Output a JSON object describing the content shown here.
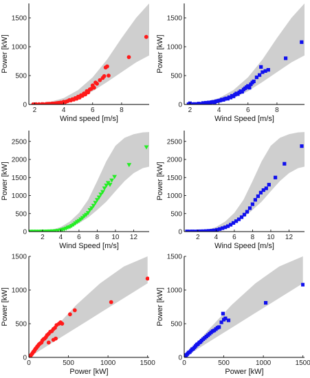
{
  "colors": {
    "band": "#cfcfcf",
    "red": "#ff1a1a",
    "blue": "#1010ee",
    "green": "#22ee22",
    "axis": "#000000"
  },
  "chart_data": [
    {
      "id": "p1",
      "type": "scatter",
      "marker": "circle",
      "color": "#ff1a1a",
      "xlabel": "Wind speed [m/s]",
      "ylabel": "Power [kW]",
      "xlim": [
        1.6,
        9.9
      ],
      "ylim": [
        0,
        1750
      ],
      "xticks": [
        2,
        4,
        6,
        8
      ],
      "yticks": [
        0,
        500,
        1000,
        1500
      ],
      "band": {
        "x": [
          1.8,
          3,
          4,
          5,
          6,
          7,
          8,
          9,
          9.9
        ],
        "lower": [
          0,
          10,
          40,
          110,
          230,
          390,
          560,
          730,
          850
        ],
        "upper": [
          0,
          40,
          110,
          250,
          470,
          780,
          1150,
          1500,
          1750
        ]
      },
      "points": [
        [
          1.9,
          2
        ],
        [
          2.1,
          3
        ],
        [
          2.3,
          4
        ],
        [
          2.5,
          6
        ],
        [
          2.6,
          5
        ],
        [
          2.8,
          8
        ],
        [
          2.9,
          10
        ],
        [
          3.0,
          12
        ],
        [
          3.1,
          9
        ],
        [
          3.2,
          16
        ],
        [
          3.3,
          14
        ],
        [
          3.4,
          18
        ],
        [
          3.5,
          22
        ],
        [
          3.6,
          25
        ],
        [
          3.7,
          28
        ],
        [
          3.8,
          32
        ],
        [
          3.9,
          30
        ],
        [
          4.0,
          45
        ],
        [
          4.1,
          40
        ],
        [
          4.2,
          52
        ],
        [
          4.3,
          60
        ],
        [
          4.4,
          75
        ],
        [
          4.5,
          70
        ],
        [
          4.6,
          90
        ],
        [
          4.7,
          85
        ],
        [
          4.8,
          110
        ],
        [
          4.9,
          100
        ],
        [
          5.0,
          135
        ],
        [
          5.1,
          120
        ],
        [
          5.2,
          160
        ],
        [
          5.3,
          150
        ],
        [
          5.4,
          190
        ],
        [
          5.5,
          175
        ],
        [
          5.6,
          230
        ],
        [
          5.7,
          210
        ],
        [
          5.8,
          260
        ],
        [
          5.9,
          270
        ],
        [
          6.0,
          330
        ],
        [
          6.1,
          290
        ],
        [
          6.2,
          380
        ],
        [
          6.3,
          360
        ],
        [
          6.5,
          420
        ],
        [
          6.7,
          460
        ],
        [
          6.8,
          490
        ],
        [
          6.9,
          640
        ],
        [
          7.0,
          660
        ],
        [
          7.1,
          500
        ],
        [
          8.5,
          820
        ],
        [
          9.7,
          1170
        ]
      ]
    },
    {
      "id": "p2",
      "type": "scatter",
      "marker": "square",
      "color": "#1010ee",
      "xlabel": "Wind Speed [m/s]",
      "ylabel": "Power [kW]",
      "xlim": [
        1.6,
        9.9
      ],
      "ylim": [
        0,
        1750
      ],
      "xticks": [
        2,
        4,
        6,
        8
      ],
      "yticks": [
        0,
        500,
        1000,
        1500
      ],
      "band": {
        "x": [
          1.8,
          3,
          4,
          5,
          6,
          7,
          8,
          9,
          9.9
        ],
        "lower": [
          0,
          10,
          40,
          110,
          230,
          390,
          560,
          730,
          850
        ],
        "upper": [
          0,
          40,
          110,
          250,
          470,
          780,
          1150,
          1500,
          1750
        ]
      },
      "points": [
        [
          1.9,
          3
        ],
        [
          2.0,
          20
        ],
        [
          2.1,
          5
        ],
        [
          2.3,
          8
        ],
        [
          2.5,
          6
        ],
        [
          2.6,
          15
        ],
        [
          2.8,
          10
        ],
        [
          2.9,
          25
        ],
        [
          3.0,
          18
        ],
        [
          3.1,
          30
        ],
        [
          3.2,
          22
        ],
        [
          3.3,
          35
        ],
        [
          3.4,
          28
        ],
        [
          3.5,
          40
        ],
        [
          3.6,
          45
        ],
        [
          3.7,
          38
        ],
        [
          3.8,
          55
        ],
        [
          3.9,
          60
        ],
        [
          4.0,
          65
        ],
        [
          4.1,
          70
        ],
        [
          4.2,
          85
        ],
        [
          4.3,
          80
        ],
        [
          4.4,
          95
        ],
        [
          4.5,
          105
        ],
        [
          4.6,
          100
        ],
        [
          4.7,
          125
        ],
        [
          4.8,
          120
        ],
        [
          4.9,
          150
        ],
        [
          5.0,
          140
        ],
        [
          5.1,
          170
        ],
        [
          5.2,
          190
        ],
        [
          5.3,
          180
        ],
        [
          5.4,
          210
        ],
        [
          5.5,
          230
        ],
        [
          5.6,
          220
        ],
        [
          5.7,
          260
        ],
        [
          5.8,
          280
        ],
        [
          5.9,
          300
        ],
        [
          6.0,
          320
        ],
        [
          6.1,
          290
        ],
        [
          6.2,
          350
        ],
        [
          6.3,
          380
        ],
        [
          6.4,
          400
        ],
        [
          6.6,
          470
        ],
        [
          6.8,
          510
        ],
        [
          6.9,
          650
        ],
        [
          7.0,
          560
        ],
        [
          7.2,
          580
        ],
        [
          7.4,
          600
        ],
        [
          8.6,
          800
        ],
        [
          9.7,
          1080
        ]
      ]
    },
    {
      "id": "p3",
      "type": "scatter",
      "marker": "triangle-down",
      "color": "#22ee22",
      "xlabel": "Wind Speed [m/s]",
      "ylabel": "Power [kW]",
      "xlim": [
        0.5,
        13.7
      ],
      "ylim": [
        0,
        2800
      ],
      "xticks": [
        2,
        4,
        6,
        8,
        10,
        12
      ],
      "yticks": [
        0,
        500,
        1000,
        1500,
        2000,
        2500
      ],
      "band": {
        "x": [
          0.5,
          2,
          3,
          4,
          5,
          6,
          7,
          8,
          9,
          10,
          11,
          12,
          13,
          13.7
        ],
        "lower": [
          0,
          0,
          5,
          40,
          110,
          230,
          390,
          600,
          830,
          1120,
          1400,
          1620,
          1760,
          1800
        ],
        "upper": [
          0,
          10,
          50,
          130,
          280,
          520,
          880,
          1400,
          1950,
          2380,
          2600,
          2700,
          2750,
          2760
        ]
      },
      "points": [
        [
          0.7,
          3
        ],
        [
          1.0,
          2
        ],
        [
          1.3,
          4
        ],
        [
          1.6,
          3
        ],
        [
          1.9,
          6
        ],
        [
          2.2,
          5
        ],
        [
          2.5,
          8
        ],
        [
          2.8,
          10
        ],
        [
          3.1,
          14
        ],
        [
          3.4,
          18
        ],
        [
          3.7,
          25
        ],
        [
          4.0,
          40
        ],
        [
          4.2,
          55
        ],
        [
          4.4,
          70
        ],
        [
          4.6,
          90
        ],
        [
          4.8,
          115
        ],
        [
          5.0,
          130
        ],
        [
          5.2,
          160
        ],
        [
          5.4,
          190
        ],
        [
          5.6,
          230
        ],
        [
          5.8,
          270
        ],
        [
          6.0,
          300
        ],
        [
          6.2,
          340
        ],
        [
          6.4,
          380
        ],
        [
          6.6,
          430
        ],
        [
          6.8,
          470
        ],
        [
          7.0,
          520
        ],
        [
          7.2,
          600
        ],
        [
          7.4,
          650
        ],
        [
          7.6,
          720
        ],
        [
          7.8,
          800
        ],
        [
          8.0,
          880
        ],
        [
          8.2,
          950
        ],
        [
          8.4,
          1030
        ],
        [
          8.6,
          1100
        ],
        [
          8.8,
          1200
        ],
        [
          9.0,
          1280
        ],
        [
          9.2,
          1350
        ],
        [
          9.4,
          1300
        ],
        [
          9.6,
          1420
        ],
        [
          9.9,
          1520
        ],
        [
          11.5,
          1850
        ],
        [
          13.4,
          2340
        ]
      ]
    },
    {
      "id": "p4",
      "type": "scatter",
      "marker": "square",
      "color": "#1010ee",
      "xlabel": "Wind Speed [m/s]",
      "ylabel": "Power [kW]",
      "xlim": [
        0.5,
        13.7
      ],
      "ylim": [
        0,
        2800
      ],
      "xticks": [
        2,
        4,
        6,
        8,
        10,
        12
      ],
      "yticks": [
        0,
        500,
        1000,
        1500,
        2000,
        2500
      ],
      "band": {
        "x": [
          0.5,
          2,
          3,
          4,
          5,
          6,
          7,
          8,
          9,
          10,
          11,
          12,
          13,
          13.7
        ],
        "lower": [
          0,
          0,
          5,
          40,
          110,
          230,
          390,
          600,
          830,
          1120,
          1400,
          1620,
          1760,
          1800
        ],
        "upper": [
          0,
          10,
          50,
          130,
          280,
          520,
          880,
          1400,
          1950,
          2380,
          2600,
          2700,
          2750,
          2760
        ]
      },
      "points": [
        [
          0.8,
          5
        ],
        [
          1.1,
          3
        ],
        [
          1.4,
          6
        ],
        [
          1.7,
          4
        ],
        [
          2.0,
          8
        ],
        [
          2.3,
          10
        ],
        [
          2.6,
          12
        ],
        [
          2.9,
          15
        ],
        [
          3.2,
          20
        ],
        [
          3.5,
          25
        ],
        [
          3.8,
          35
        ],
        [
          4.1,
          50
        ],
        [
          4.4,
          70
        ],
        [
          4.7,
          95
        ],
        [
          5.0,
          120
        ],
        [
          5.3,
          150
        ],
        [
          5.6,
          190
        ],
        [
          5.9,
          240
        ],
        [
          6.2,
          290
        ],
        [
          6.5,
          340
        ],
        [
          6.8,
          400
        ],
        [
          7.1,
          470
        ],
        [
          7.4,
          550
        ],
        [
          7.7,
          650
        ],
        [
          8.0,
          760
        ],
        [
          8.3,
          880
        ],
        [
          8.6,
          980
        ],
        [
          8.9,
          1080
        ],
        [
          9.2,
          1150
        ],
        [
          9.5,
          1200
        ],
        [
          9.8,
          1300
        ],
        [
          10.5,
          1500
        ],
        [
          11.5,
          1880
        ],
        [
          13.4,
          2370
        ]
      ]
    },
    {
      "id": "p5",
      "type": "scatter",
      "marker": "circle",
      "color": "#ff1a1a",
      "xlabel": "Power [kW]",
      "ylabel": "Power [kW]",
      "xlim": [
        0,
        1520
      ],
      "ylim": [
        0,
        1500
      ],
      "xticks": [
        0,
        500,
        1000,
        1500
      ],
      "yticks": [
        0,
        500,
        1000,
        1500
      ],
      "band": {
        "x": [
          0,
          300,
          600,
          900,
          1200,
          1500
        ],
        "lower": [
          0,
          220,
          440,
          660,
          880,
          1100
        ],
        "upper": [
          0,
          400,
          780,
          1100,
          1350,
          1500
        ]
      },
      "points": [
        [
          5,
          5
        ],
        [
          15,
          20
        ],
        [
          25,
          30
        ],
        [
          35,
          45
        ],
        [
          45,
          60
        ],
        [
          55,
          80
        ],
        [
          65,
          90
        ],
        [
          75,
          110
        ],
        [
          85,
          130
        ],
        [
          95,
          140
        ],
        [
          105,
          160
        ],
        [
          115,
          170
        ],
        [
          125,
          190
        ],
        [
          135,
          200
        ],
        [
          145,
          210
        ],
        [
          160,
          220
        ],
        [
          170,
          250
        ],
        [
          185,
          270
        ],
        [
          200,
          280
        ],
        [
          215,
          300
        ],
        [
          230,
          330
        ],
        [
          250,
          350
        ],
        [
          270,
          380
        ],
        [
          290,
          390
        ],
        [
          310,
          420
        ],
        [
          330,
          440
        ],
        [
          350,
          480
        ],
        [
          380,
          500
        ],
        [
          400,
          520
        ],
        [
          420,
          500
        ],
        [
          340,
          280
        ],
        [
          310,
          260
        ],
        [
          250,
          220
        ],
        [
          520,
          640
        ],
        [
          580,
          700
        ],
        [
          1040,
          820
        ],
        [
          1500,
          1170
        ]
      ]
    },
    {
      "id": "p6",
      "type": "scatter",
      "marker": "square",
      "color": "#1010ee",
      "xlabel": "Power [kW]",
      "ylabel": "Power [kW]",
      "xlim": [
        0,
        1520
      ],
      "ylim": [
        0,
        1500
      ],
      "xticks": [
        0,
        500,
        1000,
        1500
      ],
      "yticks": [
        0,
        500,
        1000,
        1500
      ],
      "band": {
        "x": [
          0,
          300,
          600,
          900,
          1200,
          1500
        ],
        "lower": [
          0,
          220,
          440,
          660,
          880,
          1100
        ],
        "upper": [
          0,
          400,
          780,
          1100,
          1350,
          1500
        ]
      },
      "points": [
        [
          5,
          10
        ],
        [
          15,
          25
        ],
        [
          25,
          35
        ],
        [
          40,
          50
        ],
        [
          55,
          70
        ],
        [
          70,
          80
        ],
        [
          85,
          100
        ],
        [
          100,
          120
        ],
        [
          115,
          130
        ],
        [
          130,
          150
        ],
        [
          145,
          170
        ],
        [
          160,
          190
        ],
        [
          175,
          200
        ],
        [
          190,
          220
        ],
        [
          205,
          230
        ],
        [
          220,
          250
        ],
        [
          240,
          270
        ],
        [
          260,
          290
        ],
        [
          280,
          310
        ],
        [
          300,
          330
        ],
        [
          320,
          350
        ],
        [
          340,
          370
        ],
        [
          360,
          390
        ],
        [
          380,
          400
        ],
        [
          400,
          420
        ],
        [
          420,
          440
        ],
        [
          440,
          450
        ],
        [
          470,
          520
        ],
        [
          500,
          560
        ],
        [
          520,
          580
        ],
        [
          560,
          550
        ],
        [
          490,
          650
        ],
        [
          1030,
          810
        ],
        [
          1500,
          1080
        ]
      ]
    }
  ]
}
